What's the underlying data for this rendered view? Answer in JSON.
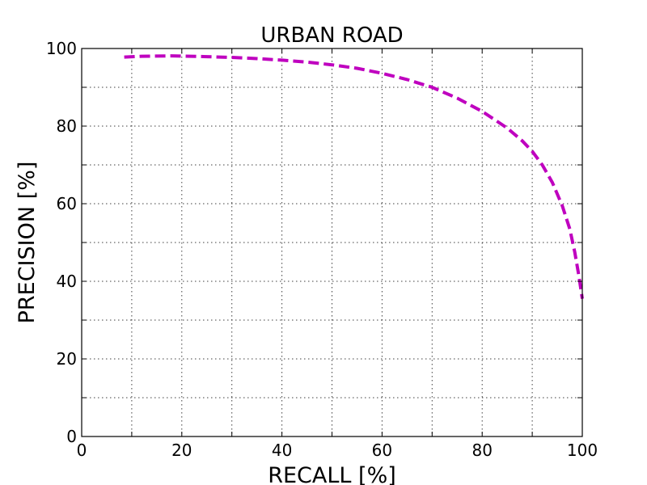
{
  "chart_data": {
    "type": "line",
    "title": "URBAN ROAD",
    "xlabel": "RECALL [%]",
    "ylabel": "PRECISION [%]",
    "xlim": [
      0,
      100
    ],
    "ylim": [
      0,
      100
    ],
    "xticks": [
      0,
      20,
      40,
      60,
      80,
      100
    ],
    "yticks": [
      0,
      20,
      40,
      60,
      80,
      100
    ],
    "xticks_minor": [
      10,
      30,
      50,
      70,
      90
    ],
    "yticks_minor": [
      10,
      30,
      50,
      70,
      90
    ],
    "grid": true,
    "series": [
      {
        "color": "#bf00bf",
        "style": "dashed",
        "x": [
          8.5,
          12,
          18,
          25,
          30,
          35,
          40,
          45,
          50,
          55,
          60,
          65,
          70,
          75,
          80,
          85,
          88,
          90,
          92,
          94,
          96,
          97.5,
          98.5,
          99.3,
          100
        ],
        "y": [
          97.8,
          98.0,
          98.1,
          97.9,
          97.7,
          97.4,
          97.0,
          96.5,
          95.8,
          94.9,
          93.6,
          92.0,
          90.0,
          87.2,
          83.8,
          79.5,
          76.2,
          73.5,
          70.0,
          65.5,
          59.5,
          53.5,
          47.5,
          41.5,
          35.5
        ]
      }
    ]
  }
}
